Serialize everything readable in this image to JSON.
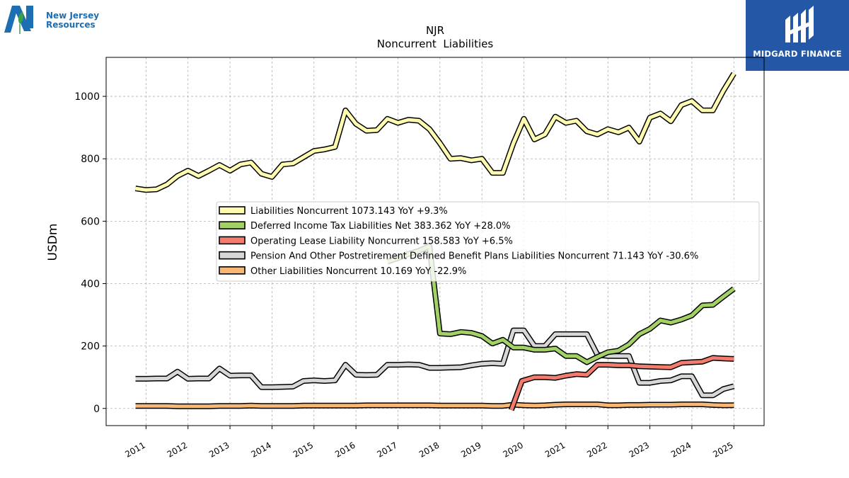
{
  "brand": {
    "company_logo_text_line1": "New Jersey",
    "company_logo_text_line2": "Resources",
    "watermark_text": "MIDGARD FINANCE",
    "watermark_bg": "#2557a7",
    "company_logo_color": "#1d6fb3"
  },
  "chart_data": {
    "type": "line",
    "title": "NJR",
    "subtitle": "Noncurrent  Liabilities",
    "ylabel": "USDm",
    "xlabel": "",
    "ylim": [
      -55,
      1125
    ],
    "xlim": [
      2010.05,
      2025.72
    ],
    "yticks": [
      0,
      200,
      400,
      600,
      800,
      1000
    ],
    "xticks": [
      "2011",
      "2012",
      "2013",
      "2014",
      "2015",
      "2016",
      "2017",
      "2018",
      "2019",
      "2020",
      "2021",
      "2022",
      "2023",
      "2024",
      "2025"
    ],
    "grid": true,
    "legend_placement": "center",
    "series": [
      {
        "legend": "Liabilities Noncurrent  1073.143 YoY +9.3%",
        "color": "#fffbb0",
        "points": [
          [
            2010.75,
            705
          ],
          [
            2011.0,
            700
          ],
          [
            2011.25,
            702
          ],
          [
            2011.5,
            718
          ],
          [
            2011.75,
            745
          ],
          [
            2012.0,
            762
          ],
          [
            2012.25,
            745
          ],
          [
            2012.5,
            762
          ],
          [
            2012.75,
            780
          ],
          [
            2013.0,
            762
          ],
          [
            2013.25,
            782
          ],
          [
            2013.5,
            788
          ],
          [
            2013.75,
            752
          ],
          [
            2014.0,
            742
          ],
          [
            2014.25,
            782
          ],
          [
            2014.5,
            785
          ],
          [
            2014.75,
            805
          ],
          [
            2015.0,
            825
          ],
          [
            2015.25,
            830
          ],
          [
            2015.5,
            838
          ],
          [
            2015.75,
            955
          ],
          [
            2016.0,
            912
          ],
          [
            2016.25,
            890
          ],
          [
            2016.5,
            892
          ],
          [
            2016.75,
            928
          ],
          [
            2017.0,
            915
          ],
          [
            2017.25,
            925
          ],
          [
            2017.5,
            922
          ],
          [
            2017.75,
            895
          ],
          [
            2018.0,
            850
          ],
          [
            2018.25,
            800
          ],
          [
            2018.5,
            802
          ],
          [
            2018.75,
            795
          ],
          [
            2019.0,
            800
          ],
          [
            2019.25,
            755
          ],
          [
            2019.5,
            755
          ],
          [
            2019.75,
            850
          ],
          [
            2020.0,
            928
          ],
          [
            2020.25,
            862
          ],
          [
            2020.5,
            878
          ],
          [
            2020.75,
            935
          ],
          [
            2021.0,
            915
          ],
          [
            2021.25,
            922
          ],
          [
            2021.5,
            888
          ],
          [
            2021.75,
            878
          ],
          [
            2022.0,
            895
          ],
          [
            2022.25,
            885
          ],
          [
            2022.5,
            900
          ],
          [
            2022.75,
            855
          ],
          [
            2023.0,
            932
          ],
          [
            2023.25,
            945
          ],
          [
            2023.5,
            920
          ],
          [
            2023.75,
            972
          ],
          [
            2024.0,
            985
          ],
          [
            2024.25,
            955
          ],
          [
            2024.5,
            955
          ],
          [
            2024.75,
            1018
          ],
          [
            2025.0,
            1073.143
          ]
        ]
      },
      {
        "legend": "Deferred Income Tax Liabilities Net  383.362 YoY +28.0%",
        "color": "#a3d165",
        "points": [
          [
            2016.75,
            470
          ],
          [
            2017.0,
            482
          ],
          [
            2017.25,
            495
          ],
          [
            2017.5,
            505
          ],
          [
            2017.75,
            520
          ],
          [
            2018.0,
            240
          ],
          [
            2018.25,
            238
          ],
          [
            2018.5,
            245
          ],
          [
            2018.75,
            242
          ],
          [
            2019.0,
            232
          ],
          [
            2019.25,
            208
          ],
          [
            2019.5,
            220
          ],
          [
            2019.75,
            195
          ],
          [
            2020.0,
            195
          ],
          [
            2020.25,
            188
          ],
          [
            2020.5,
            188
          ],
          [
            2020.75,
            192
          ],
          [
            2021.0,
            168
          ],
          [
            2021.25,
            168
          ],
          [
            2021.5,
            148
          ],
          [
            2021.75,
            165
          ],
          [
            2022.0,
            180
          ],
          [
            2022.25,
            185
          ],
          [
            2022.5,
            205
          ],
          [
            2022.75,
            238
          ],
          [
            2023.0,
            255
          ],
          [
            2023.25,
            282
          ],
          [
            2023.5,
            275
          ],
          [
            2023.75,
            285
          ],
          [
            2024.0,
            298
          ],
          [
            2024.25,
            330
          ],
          [
            2024.5,
            332
          ],
          [
            2024.75,
            358
          ],
          [
            2025.0,
            383.362
          ]
        ]
      },
      {
        "legend": "Operating Lease Liability Noncurrent  158.583 YoY +6.5%",
        "color": "#f47c6e",
        "points": [
          [
            2019.7,
            -5
          ],
          [
            2019.95,
            88
          ],
          [
            2020.25,
            100
          ],
          [
            2020.5,
            100
          ],
          [
            2020.75,
            98
          ],
          [
            2021.0,
            105
          ],
          [
            2021.25,
            110
          ],
          [
            2021.5,
            108
          ],
          [
            2021.75,
            140
          ],
          [
            2022.0,
            140
          ],
          [
            2022.25,
            138
          ],
          [
            2022.5,
            138
          ],
          [
            2022.75,
            135
          ],
          [
            2023.0,
            134
          ],
          [
            2023.25,
            133
          ],
          [
            2023.5,
            132
          ],
          [
            2023.75,
            146
          ],
          [
            2024.0,
            148
          ],
          [
            2024.25,
            150
          ],
          [
            2024.5,
            162
          ],
          [
            2024.75,
            160
          ],
          [
            2025.0,
            158.583
          ]
        ]
      },
      {
        "legend": "Pension And Other Postretirement Defined Benefit Plans Liabilities Noncurrent  71.143 YoY -30.6%",
        "color": "#d7d7d7",
        "points": [
          [
            2010.75,
            95
          ],
          [
            2011.0,
            95
          ],
          [
            2011.25,
            96
          ],
          [
            2011.5,
            96
          ],
          [
            2011.75,
            118
          ],
          [
            2012.0,
            95
          ],
          [
            2012.25,
            96
          ],
          [
            2012.5,
            96
          ],
          [
            2012.75,
            128
          ],
          [
            2013.0,
            105
          ],
          [
            2013.25,
            106
          ],
          [
            2013.5,
            106
          ],
          [
            2013.75,
            68
          ],
          [
            2014.0,
            68
          ],
          [
            2014.25,
            69
          ],
          [
            2014.5,
            70
          ],
          [
            2014.75,
            88
          ],
          [
            2015.0,
            90
          ],
          [
            2015.25,
            88
          ],
          [
            2015.5,
            90
          ],
          [
            2015.75,
            140
          ],
          [
            2016.0,
            108
          ],
          [
            2016.25,
            107
          ],
          [
            2016.5,
            108
          ],
          [
            2016.75,
            140
          ],
          [
            2017.0,
            140
          ],
          [
            2017.25,
            141
          ],
          [
            2017.5,
            140
          ],
          [
            2017.75,
            130
          ],
          [
            2018.0,
            130
          ],
          [
            2018.25,
            131
          ],
          [
            2018.5,
            132
          ],
          [
            2018.75,
            138
          ],
          [
            2019.0,
            143
          ],
          [
            2019.25,
            145
          ],
          [
            2019.5,
            143
          ],
          [
            2019.75,
            250
          ],
          [
            2020.0,
            250
          ],
          [
            2020.25,
            200
          ],
          [
            2020.5,
            200
          ],
          [
            2020.75,
            238
          ],
          [
            2021.0,
            238
          ],
          [
            2021.25,
            238
          ],
          [
            2021.5,
            238
          ],
          [
            2021.75,
            172
          ],
          [
            2022.0,
            168
          ],
          [
            2022.25,
            168
          ],
          [
            2022.5,
            168
          ],
          [
            2022.75,
            82
          ],
          [
            2023.0,
            82
          ],
          [
            2023.25,
            88
          ],
          [
            2023.5,
            90
          ],
          [
            2023.75,
            103
          ],
          [
            2024.0,
            103
          ],
          [
            2024.25,
            42
          ],
          [
            2024.5,
            42
          ],
          [
            2024.75,
            62
          ],
          [
            2025.0,
            71.143
          ]
        ]
      },
      {
        "legend": "Other Liabilities Noncurrent  10.169 YoY -22.9%",
        "color": "#f8b772",
        "points": [
          [
            2010.75,
            8
          ],
          [
            2011.0,
            8
          ],
          [
            2011.25,
            8
          ],
          [
            2011.5,
            8
          ],
          [
            2011.75,
            7
          ],
          [
            2012.0,
            7
          ],
          [
            2012.25,
            7
          ],
          [
            2012.5,
            7
          ],
          [
            2012.75,
            8
          ],
          [
            2013.0,
            8
          ],
          [
            2013.25,
            8
          ],
          [
            2013.5,
            9
          ],
          [
            2013.75,
            8
          ],
          [
            2014.0,
            8
          ],
          [
            2014.25,
            8
          ],
          [
            2014.5,
            8
          ],
          [
            2014.75,
            9
          ],
          [
            2015.0,
            9
          ],
          [
            2015.25,
            9
          ],
          [
            2015.5,
            9
          ],
          [
            2015.75,
            9
          ],
          [
            2016.0,
            9
          ],
          [
            2016.25,
            10
          ],
          [
            2016.5,
            10
          ],
          [
            2016.75,
            10
          ],
          [
            2017.0,
            10
          ],
          [
            2017.25,
            10
          ],
          [
            2017.5,
            10
          ],
          [
            2017.75,
            10
          ],
          [
            2018.0,
            9
          ],
          [
            2018.25,
            9
          ],
          [
            2018.5,
            9
          ],
          [
            2018.75,
            9
          ],
          [
            2019.0,
            9
          ],
          [
            2019.25,
            8
          ],
          [
            2019.5,
            8
          ],
          [
            2019.75,
            12
          ],
          [
            2020.0,
            10
          ],
          [
            2020.25,
            9
          ],
          [
            2020.5,
            10
          ],
          [
            2020.75,
            12
          ],
          [
            2021.0,
            13
          ],
          [
            2021.25,
            13
          ],
          [
            2021.5,
            13
          ],
          [
            2021.75,
            13
          ],
          [
            2022.0,
            10
          ],
          [
            2022.25,
            10
          ],
          [
            2022.5,
            11
          ],
          [
            2022.75,
            11
          ],
          [
            2023.0,
            12
          ],
          [
            2023.25,
            12
          ],
          [
            2023.5,
            12
          ],
          [
            2023.75,
            13
          ],
          [
            2024.0,
            13
          ],
          [
            2024.25,
            13
          ],
          [
            2024.5,
            11
          ],
          [
            2024.75,
            10
          ],
          [
            2025.0,
            10.169
          ]
        ]
      }
    ]
  }
}
